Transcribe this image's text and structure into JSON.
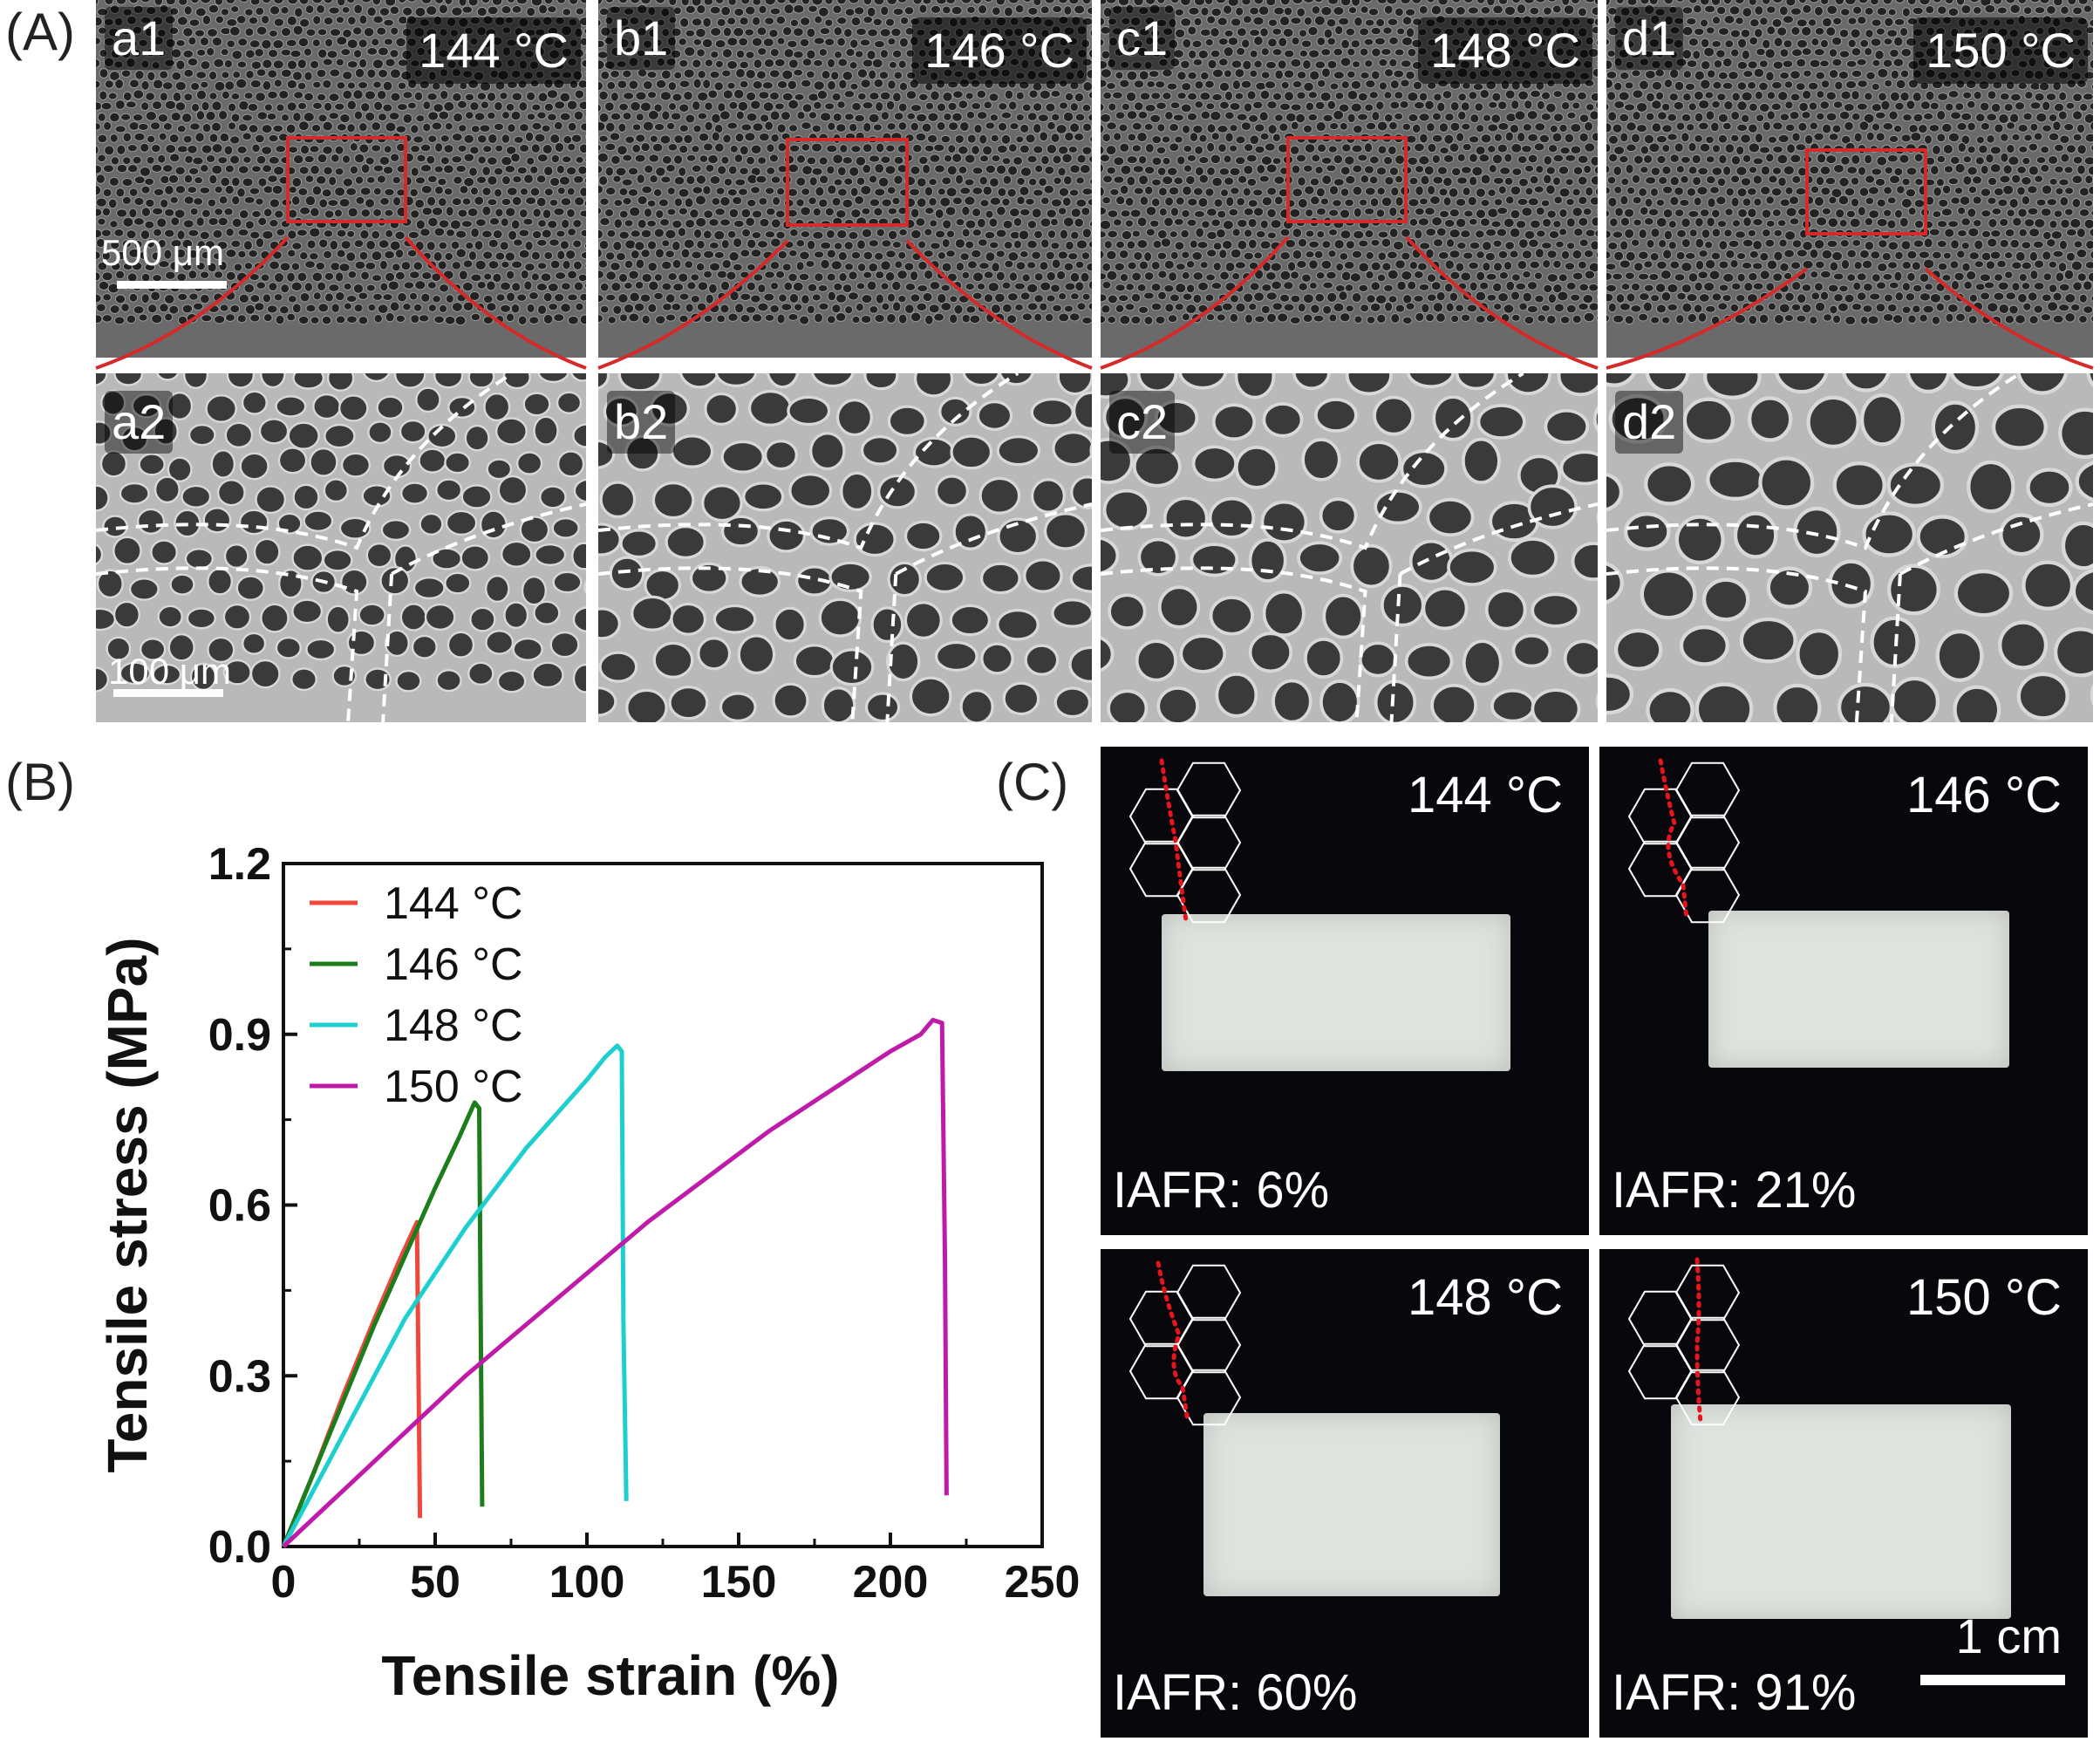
{
  "panels": {
    "A": {
      "letter": "(A)",
      "top_row": [
        {
          "id": "a1",
          "temp": "144 °C"
        },
        {
          "id": "b1",
          "temp": "146 °C"
        },
        {
          "id": "c1",
          "temp": "148 °C"
        },
        {
          "id": "d1",
          "temp": "150 °C"
        }
      ],
      "bottom_row": [
        {
          "id": "a2"
        },
        {
          "id": "b2"
        },
        {
          "id": "c2"
        },
        {
          "id": "d2"
        }
      ],
      "scale_top": "500 μm",
      "scale_bottom": "100 μm",
      "colors": {
        "zoom_box": "#d42a2a",
        "boundary": "#ffffff"
      }
    },
    "B": {
      "letter": "(B)"
    },
    "C": {
      "letter": "(C)",
      "photos": [
        {
          "temp": "144 °C",
          "iafr": "IAFR: 6%"
        },
        {
          "temp": "146 °C",
          "iafr": "IAFR: 21%"
        },
        {
          "temp": "148 °C",
          "iafr": "IAFR: 60%"
        },
        {
          "temp": "150 °C",
          "iafr": "IAFR: 91%"
        }
      ],
      "scale": "1 cm",
      "colors": {
        "fracture_line": "#e8141c",
        "hexagon": "#ffffff"
      }
    }
  },
  "chart_data": {
    "type": "line",
    "xlabel": "Tensile strain (%)",
    "ylabel": "Tensile stress (MPa)",
    "xlim": [
      0,
      250
    ],
    "ylim": [
      0,
      1.2
    ],
    "xticks": [
      "0",
      "50",
      "100",
      "150",
      "200",
      "250"
    ],
    "yticks": [
      "0.0",
      "0.3",
      "0.6",
      "0.9",
      "1.2"
    ],
    "legend_position": "top-left",
    "series": [
      {
        "name": "144 °C",
        "color": "#f0463c",
        "x": [
          0,
          10,
          20,
          30,
          38,
          44,
          44.5,
          45
        ],
        "y": [
          0,
          0.13,
          0.27,
          0.4,
          0.5,
          0.57,
          0.3,
          0.05
        ]
      },
      {
        "name": "146 °C",
        "color": "#1b7d1b",
        "x": [
          0,
          10,
          20,
          30,
          40,
          50,
          58,
          63,
          64.5,
          65,
          65.5
        ],
        "y": [
          0,
          0.13,
          0.26,
          0.39,
          0.51,
          0.63,
          0.72,
          0.78,
          0.77,
          0.4,
          0.07
        ]
      },
      {
        "name": "148 °C",
        "color": "#1ecfcf",
        "x": [
          0,
          10,
          20,
          30,
          40,
          50,
          60,
          70,
          80,
          90,
          100,
          106,
          110,
          111.5,
          112,
          113
        ],
        "y": [
          0,
          0.1,
          0.2,
          0.3,
          0.4,
          0.48,
          0.56,
          0.63,
          0.7,
          0.76,
          0.82,
          0.86,
          0.88,
          0.87,
          0.4,
          0.08
        ]
      },
      {
        "name": "150 °C",
        "color": "#c01ba8",
        "x": [
          0,
          20,
          40,
          60,
          80,
          100,
          120,
          140,
          160,
          180,
          200,
          210,
          214,
          217,
          218,
          218.5
        ],
        "y": [
          0,
          0.1,
          0.2,
          0.3,
          0.39,
          0.48,
          0.57,
          0.65,
          0.73,
          0.8,
          0.87,
          0.9,
          0.925,
          0.92,
          0.5,
          0.09
        ]
      }
    ]
  }
}
